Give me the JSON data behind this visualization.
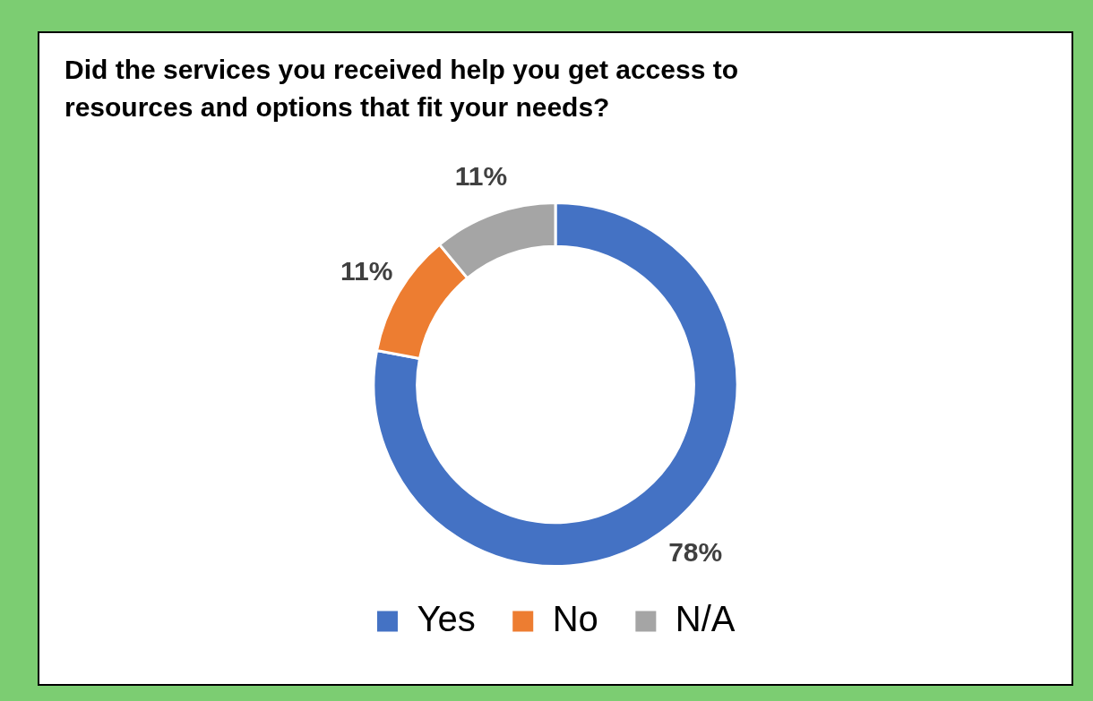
{
  "chart_data": {
    "type": "donut",
    "title": "Did the services you received help you get access to resources and options that fit your needs?",
    "categories": [
      "Yes",
      "No",
      "N/A"
    ],
    "values": [
      78,
      11,
      11
    ],
    "colors": [
      "#4472c4",
      "#ed7d31",
      "#a5a5a5"
    ],
    "value_labels": [
      "78%",
      "11%",
      "11%"
    ],
    "legend": "bottom"
  }
}
